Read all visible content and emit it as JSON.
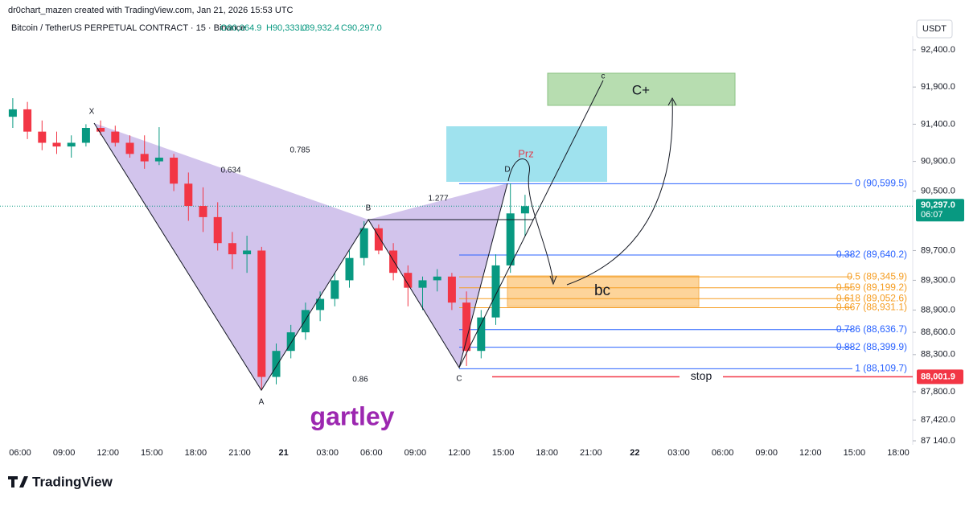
{
  "header": {
    "credit": "dr0chart_mazen created with TradingView.com, Jan 21, 2026 15:53 UTC",
    "symbol": "Bitcoin / TetherUS PERPETUAL CONTRACT · 15 · Binance",
    "ohlc": [
      "O90,064.9",
      "H90,333.0",
      "L89,932.4",
      "C90,297.0"
    ],
    "currency": "USDT"
  },
  "chart_data": {
    "type": "candlestick",
    "x": [
      "05:00",
      "06:00",
      "07:00",
      "08:00",
      "09:00",
      "10:00",
      "11:00",
      "12:00",
      "13:00",
      "14:00",
      "15:00",
      "16:00",
      "17:00",
      "18:00",
      "19:00",
      "20:00",
      "21:00",
      "22:00",
      "23:00",
      "00:00",
      "01:00",
      "02:00",
      "03:00",
      "04:00",
      "05:00",
      "06:00",
      "07:00",
      "08:00",
      "09:00",
      "10:00",
      "11:00",
      "12:00",
      "13:00",
      "14:00",
      "15:00",
      "16:00"
    ],
    "open": [
      91500,
      91600,
      91300,
      91150,
      91100,
      91150,
      91350,
      91300,
      91150,
      91000,
      90900,
      90950,
      90600,
      90300,
      90150,
      89800,
      89650,
      89700,
      88000,
      88350,
      88600,
      88900,
      89050,
      89300,
      89600,
      90000,
      89700,
      89400,
      89200,
      89300,
      89350,
      89000,
      88350,
      88800,
      89500,
      90200
    ],
    "high": [
      91750,
      91700,
      91450,
      91300,
      91250,
      91400,
      91450,
      91380,
      91250,
      91250,
      91360,
      91000,
      90750,
      90550,
      90350,
      89950,
      89900,
      89750,
      88450,
      88700,
      89000,
      89150,
      89400,
      89700,
      90095,
      90050,
      89800,
      89500,
      89350,
      89450,
      89400,
      89150,
      88900,
      89650,
      90604,
      90450
    ],
    "low": [
      91350,
      91200,
      91050,
      91000,
      90950,
      91100,
      91250,
      91100,
      90950,
      90800,
      90850,
      90500,
      90100,
      89950,
      89700,
      89450,
      89400,
      87820,
      87900,
      88250,
      88500,
      88750,
      88950,
      89200,
      89500,
      89650,
      89300,
      88950,
      88900,
      89150,
      88900,
      88147,
      88250,
      88700,
      89400,
      89900
    ],
    "close": [
      91600,
      91300,
      91150,
      91100,
      91150,
      91350,
      91300,
      91150,
      91000,
      90900,
      90950,
      90600,
      90300,
      90150,
      89800,
      89650,
      89700,
      88000,
      88350,
      88600,
      88900,
      89050,
      89300,
      89600,
      90000,
      89700,
      89400,
      89200,
      89300,
      89350,
      89000,
      88350,
      88800,
      89500,
      90200,
      90297
    ],
    "up_color": "#089981",
    "down_color": "#f23645",
    "ylim": [
      86956,
      92638
    ],
    "yticks": [
      {
        "value": 92400,
        "label": "92,400.0"
      },
      {
        "value": 91900,
        "label": "91,900.0"
      },
      {
        "value": 91400,
        "label": "91,400.0"
      },
      {
        "value": 90900,
        "label": "90,900.0"
      },
      {
        "value": 90500,
        "label": "90,500.0"
      },
      {
        "value": 89700,
        "label": "89,700.0"
      },
      {
        "value": 89300,
        "label": "89,300.0"
      },
      {
        "value": 88900,
        "label": "88,900.0"
      },
      {
        "value": 88600,
        "label": "88,600.0"
      },
      {
        "value": 88300,
        "label": "88,300.0"
      },
      {
        "value": 87800,
        "label": "87,800.0"
      },
      {
        "value": 87420,
        "label": "87,420.0"
      },
      {
        "value": 87140,
        "label": "87 140.0"
      }
    ],
    "xticks": [
      "06:00",
      "09:00",
      "12:00",
      "15:00",
      "18:00",
      "21:00",
      "21",
      "03:00",
      "06:00",
      "09:00",
      "12:00",
      "15:00",
      "18:00",
      "21:00",
      "22",
      "03:00",
      "06:00",
      "09:00",
      "12:00",
      "15:00",
      "18:00"
    ],
    "last_price": {
      "value": 90297.0,
      "label": "90,297.0",
      "countdown": "06:07"
    },
    "stop_price": {
      "value": 88001.9,
      "label": "88,001.9",
      "text": "stop"
    },
    "fib_levels": [
      {
        "price": 90599.5,
        "label": "0 (90,599.5)",
        "color": "#2962ff"
      },
      {
        "price": 89640.2,
        "label": "0.382 (89,640.2)",
        "color": "#2962ff"
      },
      {
        "price": 89345.9,
        "label": "0.5 (89,345.9)",
        "color": "#f59d22"
      },
      {
        "price": 89199.2,
        "label": "0.559 (89,199.2)",
        "color": "#f59d22"
      },
      {
        "price": 89052.6,
        "label": "0.618 (89,052.6)",
        "color": "#f59d22"
      },
      {
        "price": 88931.1,
        "label": "0.667 (88,931.1)",
        "color": "#f59d22"
      },
      {
        "price": 88636.7,
        "label": "0.786 (88,636.7)",
        "color": "#2962ff"
      },
      {
        "price": 88399.9,
        "label": "0.882 (88,399.9)",
        "color": "#2962ff"
      },
      {
        "price": 88109.7,
        "label": "1 (88,109.7)",
        "color": "#2962ff"
      }
    ]
  },
  "pattern": {
    "name": "gartley",
    "points": [
      "X",
      "A",
      "B",
      "C",
      "D"
    ],
    "ratios": [
      0.634,
      0.785,
      1.277,
      0.86
    ],
    "prz": "Prz",
    "target_c": "c",
    "target_box": "C+",
    "bc_box": "bc"
  },
  "footer": {
    "brand": "TradingView"
  }
}
